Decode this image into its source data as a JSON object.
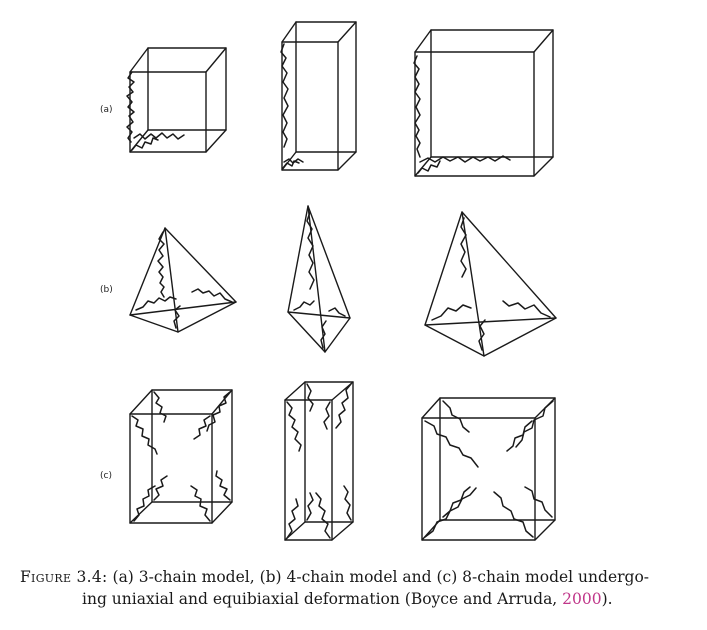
{
  "figure": {
    "row_labels": [
      "(a)",
      "(b)",
      "(c)"
    ],
    "rows": [
      {
        "label": "(a)",
        "model": "3-chain",
        "panels": [
          "undeformed",
          "uniaxial",
          "equibiaxial"
        ]
      },
      {
        "label": "(b)",
        "model": "4-chain",
        "panels": [
          "undeformed",
          "uniaxial",
          "equibiaxial"
        ]
      },
      {
        "label": "(c)",
        "model": "8-chain",
        "panels": [
          "undeformed",
          "uniaxial",
          "equibiaxial"
        ]
      }
    ]
  },
  "caption": {
    "label": "Figure 3.4:",
    "line1": "(a) 3-chain model, (b) 4-chain model and (c) 8-chain model undergo-",
    "line2_prefix": "ing uniaxial and equibiaxial deformation (Boyce and Arruda, ",
    "year": "2000",
    "line2_suffix": ")."
  }
}
